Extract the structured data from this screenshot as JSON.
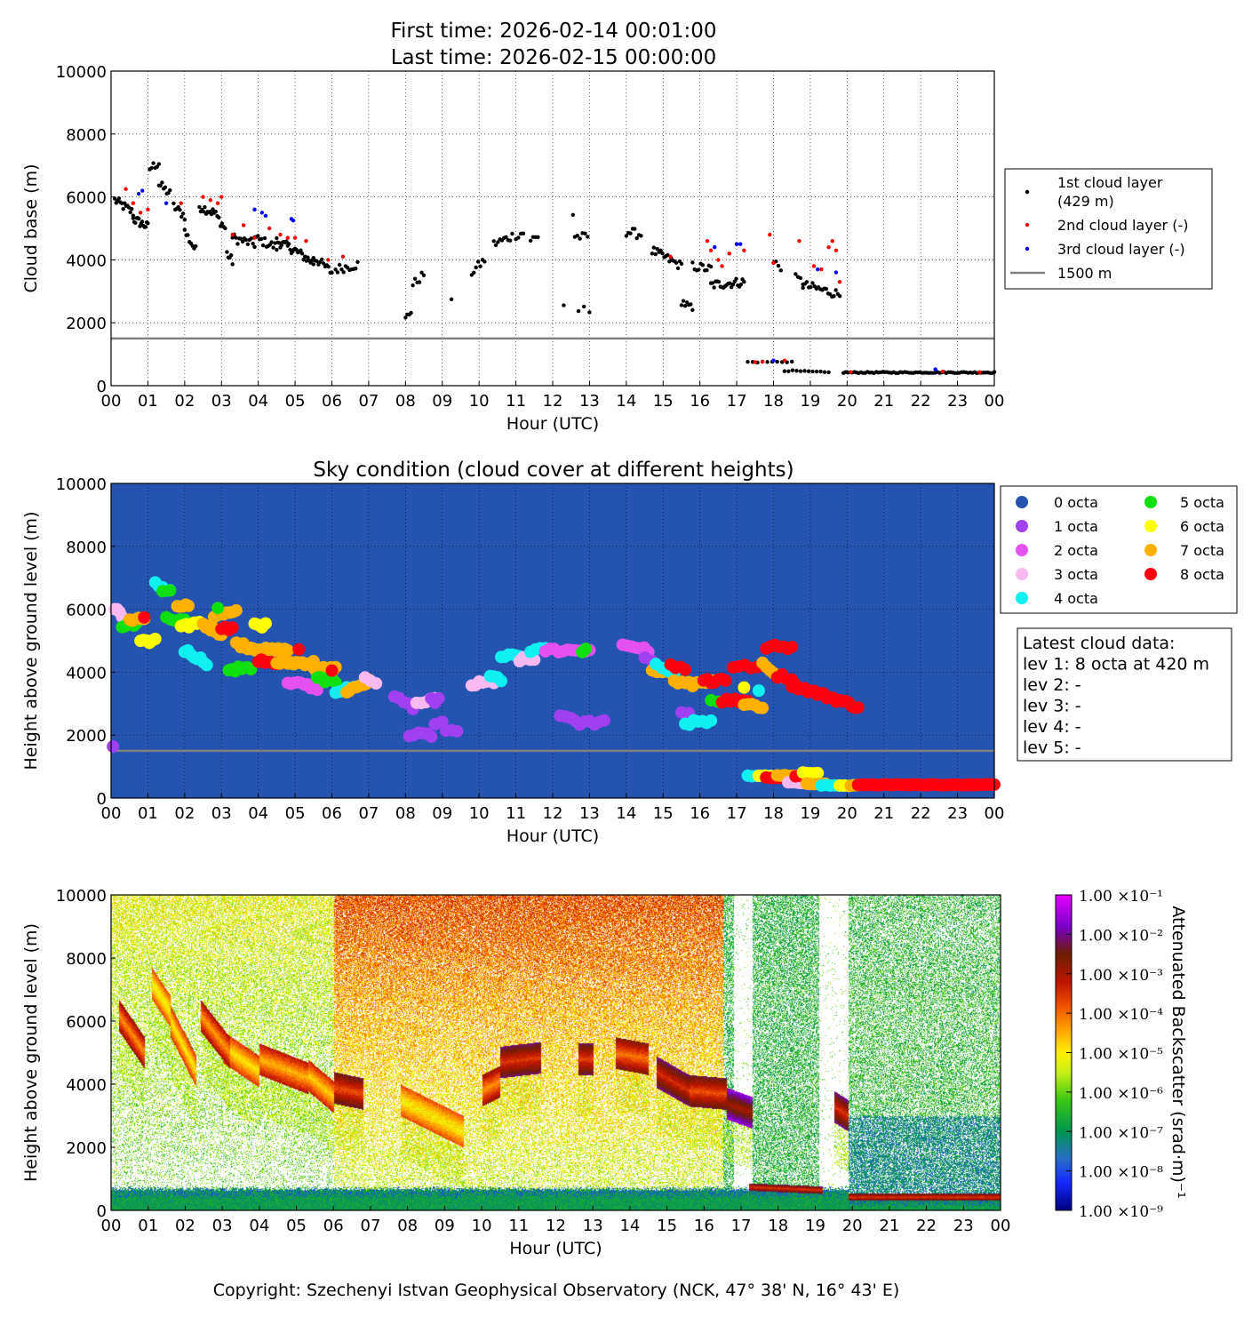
{
  "header": {
    "first_time": "First time: 2026-02-14 00:01:00",
    "last_time": "Last time: 2026-02-15 00:00:00"
  },
  "footer": {
    "copyright": "Copyright: Szechenyi Istvan Geophysical Observatory (NCK, 47° 38' N, 16° 43' E)"
  },
  "colors": {
    "layer1": "#000000",
    "layer2": "#ff0000",
    "layer3": "#0000ff",
    "ref_line": "#808080",
    "sky_bg": "#2553b0",
    "octa": [
      "#2553b0",
      "#a040f0",
      "#e550f0",
      "#f8b8f0",
      "#10f0f0",
      "#10e010",
      "#ffff00",
      "#ffb000",
      "#ff0010"
    ]
  },
  "x_ticks": [
    "00",
    "01",
    "02",
    "03",
    "04",
    "05",
    "06",
    "07",
    "08",
    "09",
    "10",
    "11",
    "12",
    "13",
    "14",
    "15",
    "16",
    "17",
    "18",
    "19",
    "20",
    "21",
    "22",
    "23",
    "00"
  ],
  "y_ticks": [
    "0",
    "2000",
    "4000",
    "6000",
    "8000",
    "10000"
  ],
  "chart_data": [
    {
      "type": "scatter",
      "title": "",
      "xlabel": "Hour (UTC)",
      "ylabel": "Cloud base (m)",
      "xlim": [
        0,
        24
      ],
      "ylim": [
        0,
        10000
      ],
      "grid": true,
      "legend_placement": "right",
      "legend": [
        "1st cloud layer",
        "(429 m)",
        "2nd cloud layer (-)",
        "3rd cloud layer (-)",
        "1500 m"
      ],
      "reference_line": 1500,
      "layer1_segments": [
        [
          0.1,
          0.6,
          5900,
          5500,
          14
        ],
        [
          0.6,
          1.0,
          5300,
          5050,
          14
        ],
        [
          1.05,
          1.3,
          6900,
          7100,
          6
        ],
        [
          1.3,
          1.6,
          6400,
          6100,
          8
        ],
        [
          1.7,
          2.0,
          5700,
          5400,
          8
        ],
        [
          2.0,
          2.3,
          4900,
          4300,
          8
        ],
        [
          2.4,
          2.8,
          5700,
          5500,
          12
        ],
        [
          2.8,
          3.1,
          5500,
          5000,
          8
        ],
        [
          3.15,
          3.3,
          4200,
          3950,
          5
        ],
        [
          3.3,
          3.9,
          4700,
          4500,
          14
        ],
        [
          3.9,
          4.5,
          4700,
          4400,
          14
        ],
        [
          4.5,
          5.0,
          4600,
          4300,
          16
        ],
        [
          5.0,
          5.5,
          4300,
          3900,
          14
        ],
        [
          5.5,
          6.0,
          4100,
          3600,
          12
        ],
        [
          6.1,
          6.7,
          3700,
          3850,
          12
        ],
        [
          8.0,
          8.15,
          2100,
          2400,
          4
        ],
        [
          8.2,
          8.5,
          3200,
          3550,
          6
        ],
        [
          9.25,
          9.25,
          2600,
          2600,
          1
        ],
        [
          9.8,
          10.15,
          3600,
          4000,
          7
        ],
        [
          10.4,
          10.9,
          4500,
          4750,
          10
        ],
        [
          11.0,
          11.2,
          4800,
          4850,
          4
        ],
        [
          11.4,
          11.6,
          4650,
          4700,
          4
        ],
        [
          12.3,
          12.3,
          2600,
          2600,
          1
        ],
        [
          12.55,
          12.65,
          5450,
          5450,
          1
        ],
        [
          12.6,
          12.95,
          4750,
          4700,
          6
        ],
        [
          12.7,
          13.0,
          2400,
          2400,
          3
        ],
        [
          14.0,
          14.4,
          4900,
          4800,
          8
        ],
        [
          14.7,
          15.5,
          4300,
          3800,
          18
        ],
        [
          15.5,
          15.8,
          2700,
          2400,
          7
        ],
        [
          15.8,
          16.3,
          3800,
          3700,
          10
        ],
        [
          16.3,
          17.2,
          3200,
          3300,
          22
        ],
        [
          17.3,
          18.5,
          750,
          760,
          10
        ],
        [
          18.0,
          18.2,
          3900,
          3800,
          4
        ],
        [
          18.6,
          18.8,
          3400,
          3300,
          4
        ],
        [
          18.8,
          19.8,
          3200,
          2900,
          20
        ],
        [
          18.3,
          19.5,
          480,
          420,
          12
        ],
        [
          19.9,
          24.0,
          420,
          420,
          70
        ]
      ],
      "layer2_points": [
        [
          0.4,
          6250
        ],
        [
          0.6,
          5800
        ],
        [
          0.8,
          5500
        ],
        [
          1.0,
          5600
        ],
        [
          1.9,
          5800
        ],
        [
          2.5,
          6000
        ],
        [
          2.7,
          5900
        ],
        [
          2.9,
          5800
        ],
        [
          3.0,
          6000
        ],
        [
          3.3,
          4800
        ],
        [
          3.6,
          5100
        ],
        [
          3.9,
          4700
        ],
        [
          4.3,
          5000
        ],
        [
          4.6,
          4800
        ],
        [
          4.8,
          4700
        ],
        [
          5.0,
          4700
        ],
        [
          5.3,
          4600
        ],
        [
          5.9,
          4000
        ],
        [
          6.3,
          4100
        ],
        [
          15.2,
          4100
        ],
        [
          16.2,
          4600
        ],
        [
          16.3,
          4300
        ],
        [
          16.5,
          4000
        ],
        [
          16.6,
          3800
        ],
        [
          16.8,
          4200
        ],
        [
          17.0,
          4500
        ],
        [
          17.2,
          4300
        ],
        [
          17.5,
          750
        ],
        [
          17.7,
          760
        ],
        [
          17.9,
          4800
        ],
        [
          18.0,
          3900
        ],
        [
          18.3,
          800
        ],
        [
          18.7,
          4600
        ],
        [
          19.1,
          3800
        ],
        [
          19.3,
          3700
        ],
        [
          19.5,
          4400
        ],
        [
          19.6,
          4600
        ],
        [
          19.7,
          4300
        ],
        [
          19.8,
          3300
        ],
        [
          20.1,
          430
        ],
        [
          22.6,
          450
        ],
        [
          23.6,
          430
        ]
      ],
      "layer3_points": [
        [
          0.75,
          6100
        ],
        [
          0.85,
          6200
        ],
        [
          1.5,
          5800
        ],
        [
          3.9,
          5600
        ],
        [
          4.1,
          5500
        ],
        [
          4.2,
          5400
        ],
        [
          4.9,
          5300
        ],
        [
          4.95,
          5250
        ],
        [
          16.4,
          4400
        ],
        [
          17.0,
          4500
        ],
        [
          17.1,
          4500
        ],
        [
          18.0,
          800
        ],
        [
          19.2,
          3700
        ],
        [
          19.7,
          3600
        ],
        [
          22.4,
          520
        ]
      ]
    },
    {
      "type": "scatter",
      "title": "Sky condition (cloud cover at different heights)",
      "xlabel": "Hour (UTC)",
      "ylabel": "Height above ground level (m)",
      "xlim": [
        0,
        24
      ],
      "ylim": [
        0,
        10000
      ],
      "grid": true,
      "reference_line": 1500,
      "legend": [
        "0 octa",
        "1 octa",
        "2 octa",
        "3 octa",
        "4 octa",
        "5 octa",
        "6 octa",
        "7 octa",
        "8 octa"
      ],
      "info_box": [
        "Latest cloud data:",
        "lev 1: 8 octa at 420 m",
        "lev 2: -",
        "lev 3: -",
        "lev 4: -",
        "lev 5: -"
      ],
      "segments": [
        [
          0.05,
          0.05,
          1700,
          1700,
          1,
          1
        ],
        [
          0.1,
          0.3,
          6000,
          5800,
          3,
          4
        ],
        [
          0.3,
          0.7,
          5500,
          5500,
          5,
          6
        ],
        [
          0.5,
          0.9,
          5700,
          5700,
          7,
          6
        ],
        [
          0.8,
          1.2,
          5000,
          5000,
          6,
          6
        ],
        [
          0.9,
          1.0,
          5700,
          5700,
          8,
          1
        ],
        [
          1.2,
          1.6,
          6800,
          6600,
          4,
          5
        ],
        [
          1.4,
          1.6,
          6600,
          6600,
          5,
          2
        ],
        [
          1.5,
          2.0,
          5700,
          5600,
          5,
          5
        ],
        [
          1.8,
          2.1,
          6100,
          6100,
          7,
          5
        ],
        [
          1.9,
          2.4,
          5400,
          5600,
          6,
          8
        ],
        [
          2.0,
          2.6,
          4700,
          4300,
          4,
          8
        ],
        [
          2.5,
          3.0,
          5500,
          5200,
          7,
          8
        ],
        [
          2.8,
          3.4,
          5800,
          5900,
          7,
          8
        ],
        [
          2.9,
          3.0,
          6000,
          6000,
          5,
          1
        ],
        [
          3.0,
          3.3,
          5400,
          5400,
          8,
          4
        ],
        [
          3.2,
          3.8,
          4100,
          4100,
          5,
          8
        ],
        [
          3.4,
          4.1,
          4900,
          4700,
          7,
          12
        ],
        [
          3.9,
          4.2,
          5500,
          5500,
          6,
          4
        ],
        [
          4.0,
          4.6,
          4400,
          4300,
          8,
          8
        ],
        [
          4.2,
          4.8,
          4700,
          4700,
          7,
          8
        ],
        [
          4.5,
          5.5,
          4300,
          4300,
          7,
          14
        ],
        [
          4.8,
          5.6,
          3700,
          3500,
          2,
          10
        ],
        [
          5.1,
          5.2,
          4700,
          4700,
          8,
          1
        ],
        [
          5.5,
          6.1,
          4100,
          4100,
          7,
          10
        ],
        [
          5.6,
          6.1,
          3800,
          3700,
          5,
          8
        ],
        [
          6.0,
          6.0,
          4100,
          4100,
          8,
          1
        ],
        [
          6.1,
          6.6,
          3400,
          3500,
          4,
          6
        ],
        [
          6.4,
          7.0,
          3400,
          3700,
          7,
          10
        ],
        [
          6.9,
          7.2,
          3800,
          3700,
          3,
          3
        ],
        [
          7.7,
          8.2,
          3200,
          2900,
          1,
          5
        ],
        [
          8.1,
          8.7,
          2000,
          2000,
          1,
          6
        ],
        [
          8.3,
          8.8,
          3000,
          3100,
          3,
          5
        ],
        [
          8.7,
          8.9,
          3100,
          3100,
          1,
          3
        ],
        [
          8.8,
          9.0,
          2400,
          2400,
          1,
          2
        ],
        [
          9.1,
          9.4,
          2100,
          2100,
          1,
          3
        ],
        [
          9.8,
          10.4,
          3600,
          3700,
          3,
          7
        ],
        [
          10.3,
          10.6,
          3900,
          3700,
          4,
          4
        ],
        [
          10.6,
          11.1,
          4500,
          4500,
          4,
          6
        ],
        [
          11.1,
          11.5,
          4400,
          4400,
          3,
          5
        ],
        [
          11.4,
          11.8,
          4700,
          4700,
          4,
          4
        ],
        [
          11.8,
          12.4,
          4700,
          4700,
          2,
          6
        ],
        [
          12.2,
          12.5,
          2600,
          2600,
          1,
          3
        ],
        [
          12.5,
          13.0,
          4700,
          4700,
          2,
          5
        ],
        [
          12.6,
          13.4,
          2400,
          2400,
          1,
          7
        ],
        [
          12.8,
          12.9,
          4600,
          4700,
          5,
          2
        ],
        [
          13.9,
          14.6,
          4900,
          4700,
          2,
          7
        ],
        [
          14.5,
          14.7,
          4400,
          4400,
          1,
          2
        ],
        [
          14.7,
          15.2,
          4000,
          4000,
          7,
          8
        ],
        [
          14.8,
          15.3,
          4300,
          4000,
          4,
          4
        ],
        [
          15.2,
          15.6,
          4200,
          4100,
          8,
          4
        ],
        [
          15.3,
          15.8,
          3700,
          3600,
          7,
          6
        ],
        [
          15.5,
          15.7,
          2700,
          2700,
          1,
          2
        ],
        [
          15.6,
          16.3,
          2400,
          2400,
          4,
          7
        ],
        [
          15.8,
          16.4,
          3600,
          3700,
          7,
          6
        ],
        [
          16.1,
          16.7,
          3700,
          3800,
          8,
          7
        ],
        [
          16.3,
          16.5,
          3100,
          3100,
          5,
          2
        ],
        [
          16.6,
          17.3,
          3100,
          3100,
          8,
          7
        ],
        [
          16.9,
          17.7,
          4200,
          4200,
          8,
          6
        ],
        [
          17.2,
          17.7,
          3000,
          2900,
          7,
          6
        ],
        [
          17.2,
          17.3,
          3500,
          3500,
          6,
          1
        ],
        [
          17.6,
          17.7,
          3400,
          3400,
          4,
          1
        ],
        [
          17.7,
          18.2,
          4300,
          3800,
          7,
          6
        ],
        [
          17.8,
          18.5,
          4800,
          4800,
          8,
          7
        ],
        [
          18.1,
          18.5,
          3900,
          3800,
          8,
          4
        ],
        [
          18.5,
          20.3,
          3600,
          2900,
          8,
          22
        ],
        [
          17.3,
          17.9,
          700,
          700,
          4,
          6
        ],
        [
          17.6,
          18.1,
          700,
          700,
          6,
          4
        ],
        [
          17.8,
          18.2,
          650,
          650,
          8,
          4
        ],
        [
          18.1,
          18.8,
          720,
          720,
          7,
          8
        ],
        [
          18.4,
          19.1,
          500,
          450,
          3,
          8
        ],
        [
          18.6,
          19.1,
          700,
          700,
          8,
          4
        ],
        [
          18.8,
          19.2,
          800,
          800,
          6,
          5
        ],
        [
          18.9,
          19.4,
          450,
          450,
          7,
          6
        ],
        [
          19.3,
          19.9,
          400,
          400,
          4,
          6
        ],
        [
          19.8,
          20.3,
          400,
          400,
          6,
          5
        ],
        [
          20.1,
          20.3,
          400,
          400,
          7,
          3
        ],
        [
          20.3,
          24.0,
          420,
          420,
          8,
          80
        ]
      ]
    },
    {
      "type": "heatmap",
      "title": "",
      "xlabel": "Hour (UTC)",
      "ylabel": "Height above ground level (m)",
      "xlim": [
        0,
        24
      ],
      "ylim": [
        0,
        10000
      ],
      "colorbar_label": "Attenuated Backscatter (srad·m)⁻¹",
      "colorbar_ticks": [
        "1.00 ×10⁻¹",
        "1.00 ×10⁻²",
        "1.00 ×10⁻³",
        "1.00 ×10⁻⁴",
        "1.00 ×10⁻⁵",
        "1.00 ×10⁻⁶",
        "1.00 ×10⁻⁷",
        "1.00 ×10⁻⁸",
        "1.00 ×10⁻⁹"
      ],
      "colorbar_range_log10": [
        -9,
        -1
      ],
      "cloud_features": [
        [
          0.2,
          0.9,
          6200,
          5000,
          -4.3
        ],
        [
          1.1,
          1.6,
          7200,
          6300,
          -5.2
        ],
        [
          1.6,
          2.3,
          6000,
          4400,
          -5.0
        ],
        [
          2.4,
          3.2,
          6200,
          5000,
          -4.4
        ],
        [
          3.0,
          4.0,
          5200,
          4400,
          -5.0
        ],
        [
          4.0,
          5.3,
          4800,
          4200,
          -4.6
        ],
        [
          5.3,
          6.0,
          4300,
          3600,
          -4.8
        ],
        [
          6.0,
          6.8,
          3900,
          3700,
          -3.8
        ],
        [
          7.8,
          9.5,
          3500,
          2500,
          -5.2
        ],
        [
          10.0,
          10.5,
          3800,
          4100,
          -4.3
        ],
        [
          10.5,
          11.6,
          4700,
          4850,
          -3.6
        ],
        [
          12.6,
          13.0,
          4800,
          4800,
          -3.7
        ],
        [
          13.6,
          14.5,
          5000,
          4800,
          -4.1
        ],
        [
          14.7,
          15.6,
          4400,
          3800,
          -3.5
        ],
        [
          15.6,
          16.6,
          3800,
          3700,
          -3.8
        ],
        [
          16.6,
          17.3,
          3400,
          3100,
          -3.0
        ],
        [
          17.2,
          19.2,
          750,
          650,
          -3.6
        ],
        [
          19.5,
          19.9,
          3300,
          3000,
          -3.5
        ],
        [
          19.9,
          24.0,
          430,
          430,
          -3.6
        ]
      ],
      "boundary_layer_top_m": 700
    }
  ]
}
